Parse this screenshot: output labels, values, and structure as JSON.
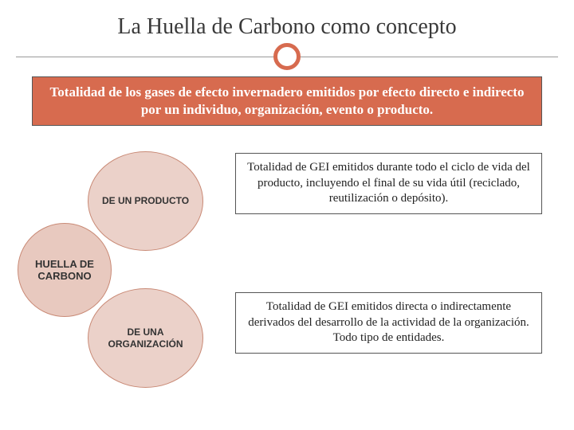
{
  "title": "La Huella de Carbono como concepto",
  "definition": "Totalidad de los gases de efecto invernadero emitidos por efecto directo e indirecto por un individuo, organización, evento o producto.",
  "diagram": {
    "main_circle": {
      "label": "HUELLA DE CARBONO",
      "fill": "#e8c9bf",
      "border": "#c98a76"
    },
    "top_circle": {
      "label": "DE UN PRODUCTO",
      "fill": "#e8c9bf",
      "border": "#c98a76"
    },
    "bottom_circle": {
      "label": "DE UNA ORGANIZACIÓN",
      "fill": "#e8c9bf",
      "border": "#c98a76"
    }
  },
  "descriptions": {
    "product": "Totalidad de GEI emitidos durante todo el ciclo de vida del producto, incluyendo el final de su vida útil (reciclado, reutilización o depósito).",
    "organization": "Totalidad de GEI emitidos directa o indirectamente derivados del desarrollo de la actividad de la organización. Todo tipo de entidades."
  },
  "colors": {
    "accent": "#d76b4f",
    "circle_fill": "#e8c9bf",
    "text_dark": "#333333",
    "background": "#ffffff"
  }
}
